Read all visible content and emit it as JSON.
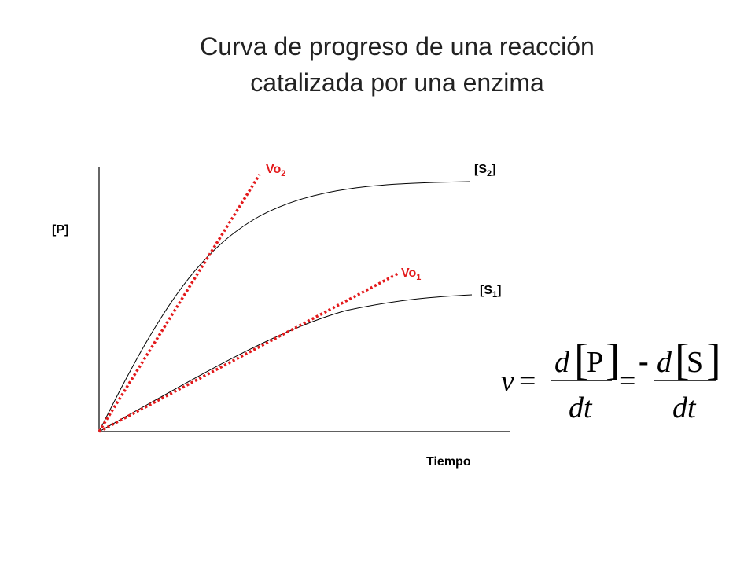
{
  "title": {
    "line1": "Curva de progreso de una reacción",
    "line2": "catalizada por una enzima"
  },
  "axes": {
    "y_label": "[P]",
    "x_label": "Tiempo"
  },
  "curves": {
    "s2": {
      "base": "[S",
      "sub": "2",
      "close": "]"
    },
    "s1": {
      "base": "[S",
      "sub": "1",
      "close": "]"
    }
  },
  "tangents": {
    "vo2": {
      "base": "Vo",
      "sub": "2"
    },
    "vo1": {
      "base": "Vo",
      "sub": "1"
    }
  },
  "equation": {
    "v": "v",
    "equals1": "=",
    "equals2": "=",
    "minus": "-",
    "d1": "d",
    "p": "P",
    "dt1": "dt",
    "d2": "d",
    "s": "S",
    "dt2": "dt",
    "lbracket": "[",
    "rbracket": "]"
  },
  "colors": {
    "tangent": "#e31a1c",
    "curve": "#000000"
  }
}
